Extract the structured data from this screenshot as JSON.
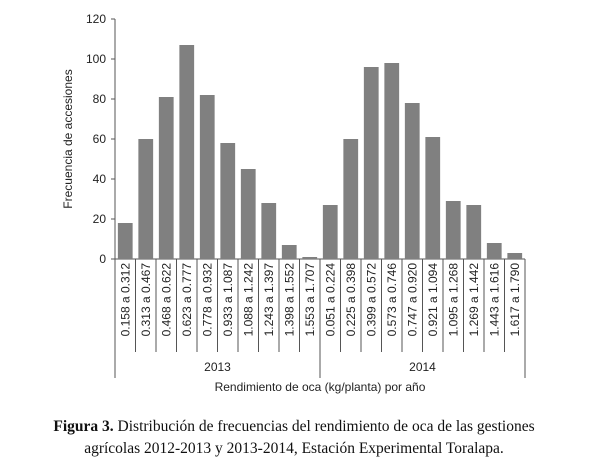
{
  "chart_data": {
    "type": "bar",
    "x_label": "Rendimiento de oca (kg/planta) por año",
    "y_label": "Frecuencia de accesiones",
    "color": "#808080",
    "groups": [
      {
        "label": "2013",
        "categories": [
          "0.158 a 0.312",
          "0.313 a 0.467",
          "0.468 a 0.622",
          "0.623 a 0.777",
          "0.778 a 0.932",
          "0.933 a 1.087",
          "1.088 a 1.242",
          "1.243 a 1.397",
          "1.398 a 1.552",
          "1.553 a 1.707"
        ],
        "values": [
          18,
          60,
          81,
          107,
          82,
          58,
          45,
          28,
          7,
          1
        ]
      },
      {
        "label": "2014",
        "categories": [
          "0.051 a 0.224",
          "0.225 a 0.398",
          "0.399 a 0.572",
          "0.573 a 0.746",
          "0.747 a 0.920",
          "0.921 a 1.094",
          "1.095 a 1.268",
          "1.269 a 1.442",
          "1.443 a 1.616",
          "1.617 a 1.790"
        ],
        "values": [
          27,
          60,
          96,
          98,
          78,
          61,
          29,
          27,
          8,
          3
        ]
      }
    ],
    "ylim": [
      0,
      120
    ],
    "yticks": [
      0,
      20,
      40,
      60,
      80,
      100,
      120
    ],
    "grid": false
  },
  "caption": {
    "label": "Figura 3.",
    "lines": [
      "Distribución de frecuencias del rendimiento de oca de las gestiones",
      "agrícolas 2012-2013 y 2013-2014, Estación Experimental Toralapa."
    ]
  }
}
